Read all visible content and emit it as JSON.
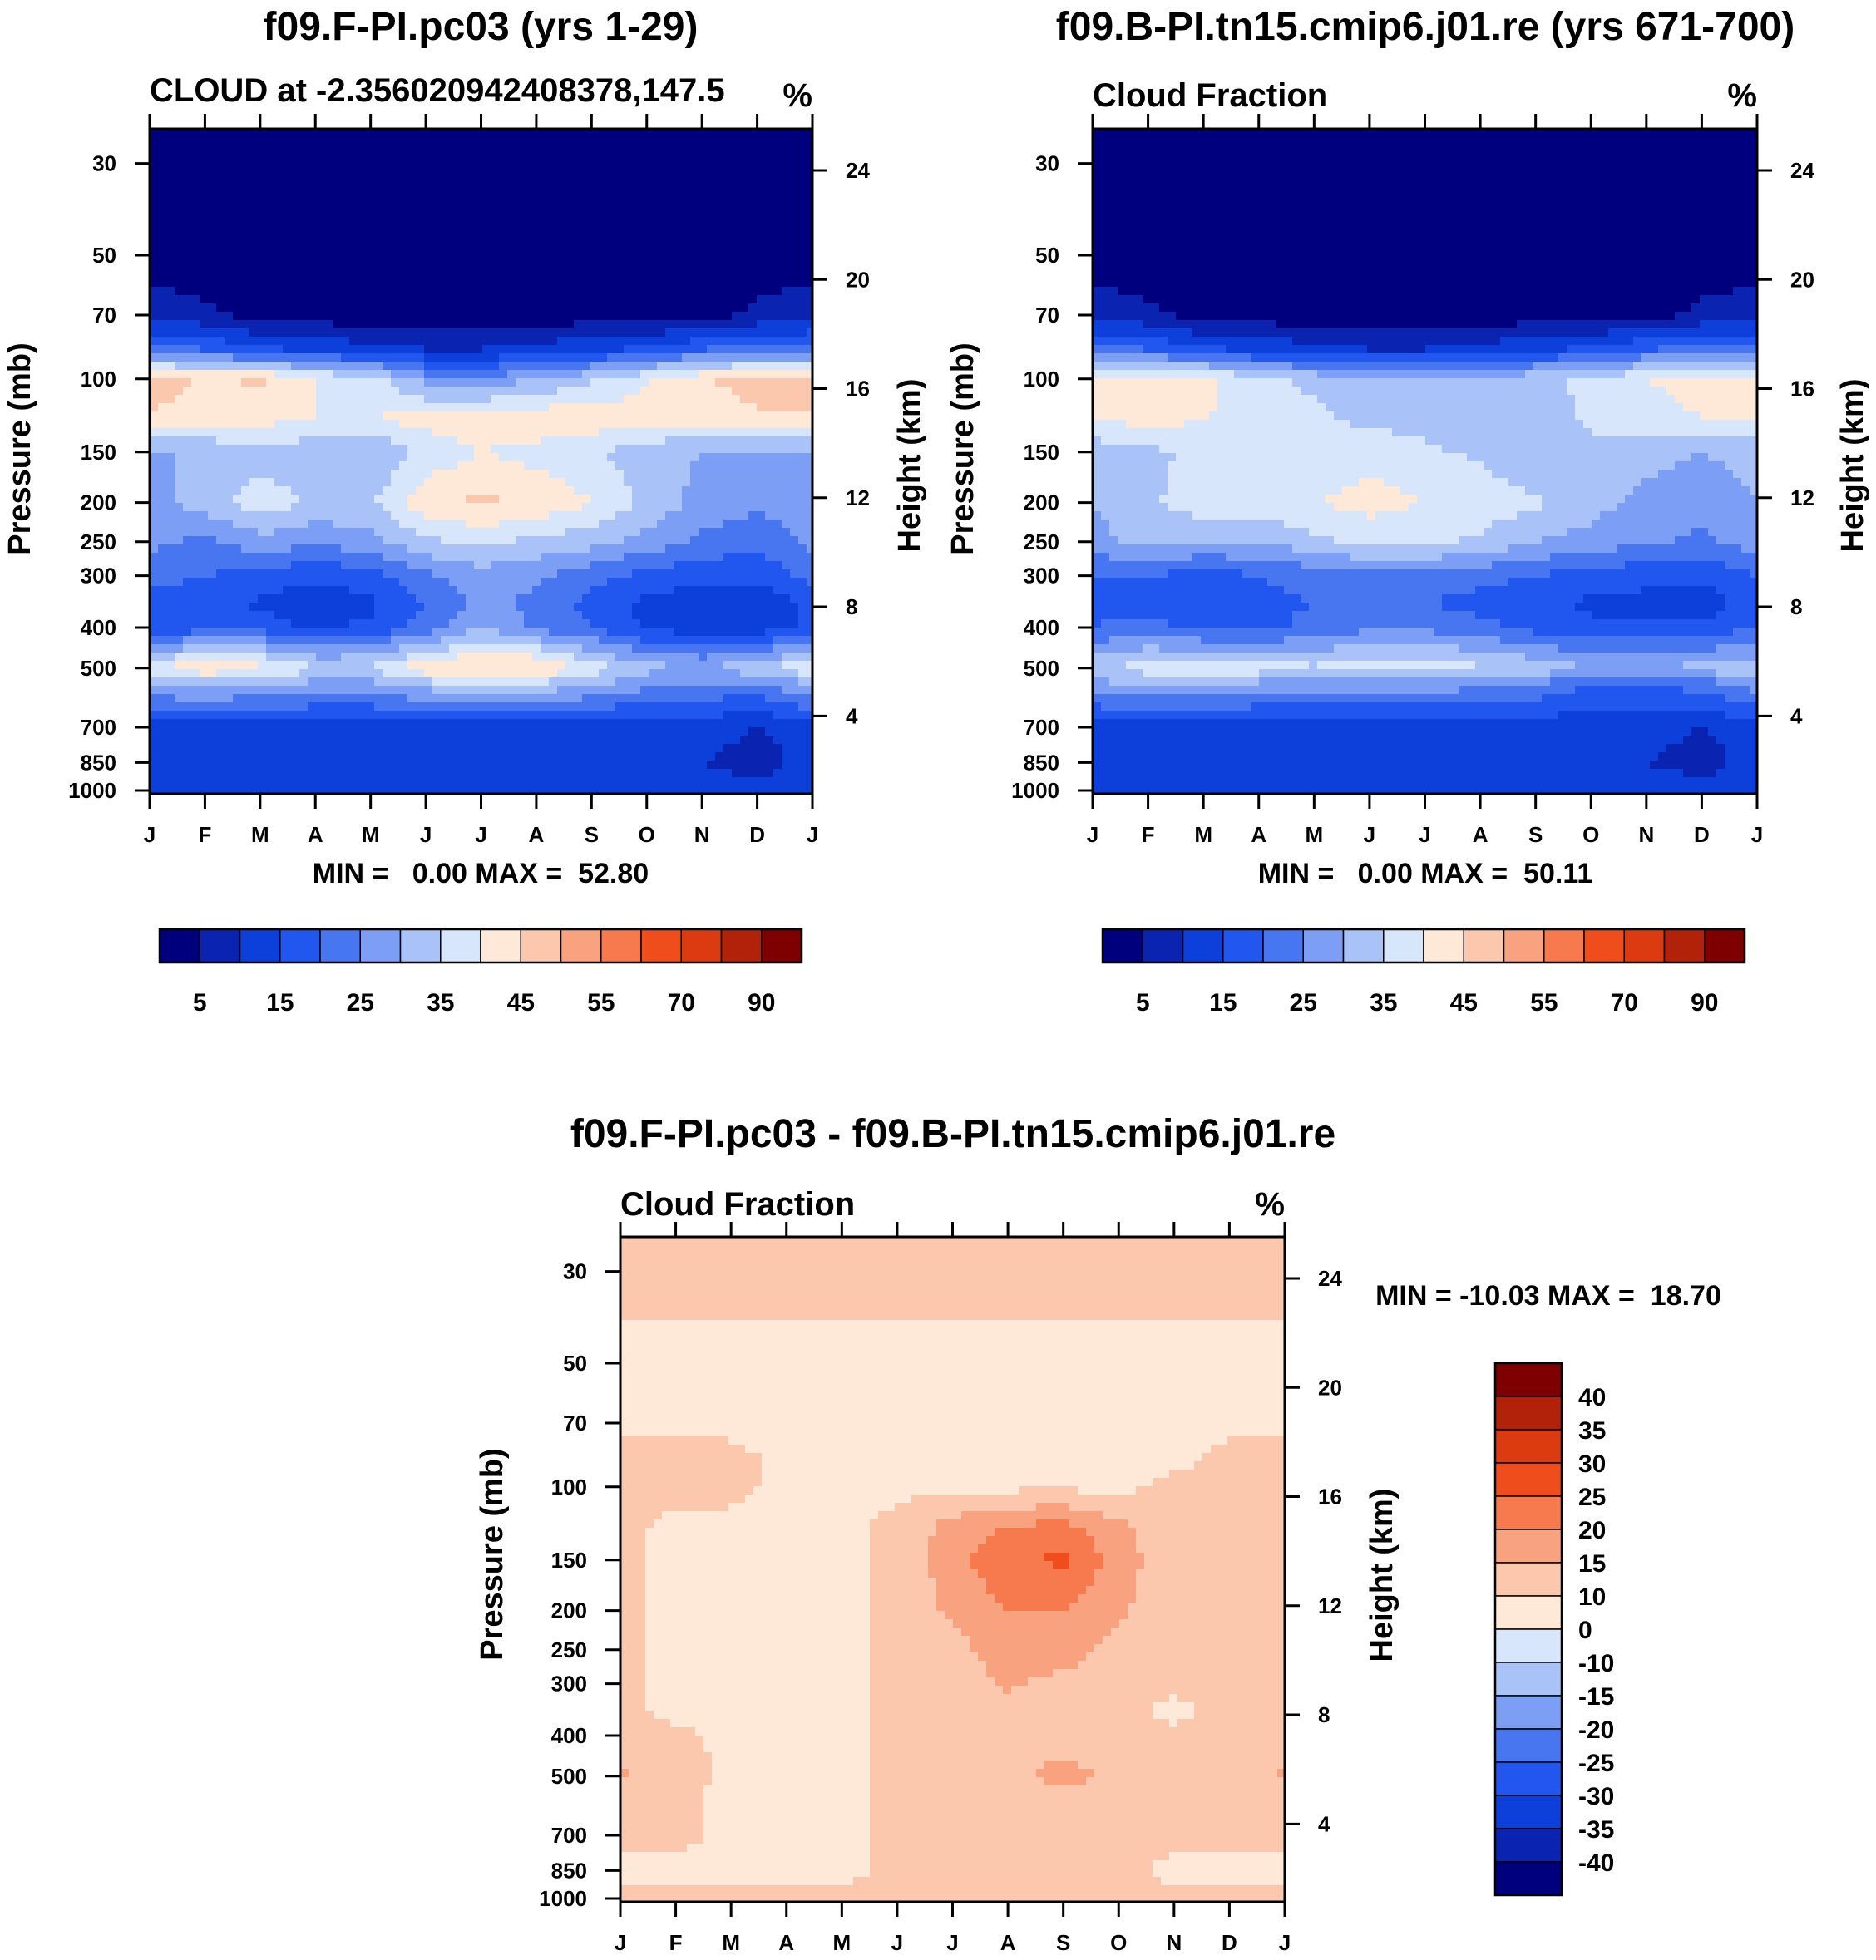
{
  "chart_data": [
    {
      "type": "contour",
      "id": "panel1",
      "title": "f09.F-PI.pc03 (yrs 1-29)",
      "left_label": "CLOUD at -2.356020942408378,147.5",
      "right_label": "%",
      "ylabel": "Pressure (mb)",
      "ylabel_right": "Height (km)",
      "x_ticks": [
        "J",
        "F",
        "M",
        "A",
        "M",
        "J",
        "J",
        "A",
        "S",
        "O",
        "N",
        "D",
        "J"
      ],
      "y_ticks": [
        30,
        50,
        70,
        100,
        150,
        200,
        250,
        300,
        400,
        500,
        700,
        850,
        1000
      ],
      "height_ticks": [
        24,
        20,
        16,
        12,
        8,
        4
      ],
      "minmax": "MIN =   0.00 MAX =  52.80",
      "min": 0.0,
      "max": 52.8,
      "colorbar_labels": [
        "5",
        "15",
        "25",
        "35",
        "45",
        "55",
        "70",
        "90"
      ],
      "levels": [
        0,
        5,
        10,
        15,
        20,
        25,
        30,
        35,
        40,
        45,
        50,
        55,
        60,
        70,
        80,
        90,
        100
      ],
      "months": [
        1,
        2,
        3,
        4,
        5,
        6,
        7,
        8,
        9,
        10,
        11,
        12,
        13
      ],
      "pressure_levels": [
        30,
        50,
        70,
        85,
        100,
        125,
        150,
        200,
        250,
        300,
        350,
        400,
        500,
        550,
        700,
        850,
        1000
      ],
      "values": [
        [
          2,
          2,
          2,
          2,
          2,
          2,
          2,
          2,
          2,
          2,
          2,
          2,
          2
        ],
        [
          2,
          2,
          2,
          2,
          2,
          2,
          2,
          2,
          2,
          2,
          2,
          2,
          2
        ],
        [
          8,
          6,
          3,
          2,
          2,
          2,
          2,
          2,
          2,
          2,
          3,
          6,
          8
        ],
        [
          22,
          20,
          16,
          14,
          12,
          10,
          10,
          12,
          14,
          16,
          20,
          22,
          22
        ],
        [
          48,
          44,
          46,
          40,
          38,
          28,
          26,
          30,
          34,
          40,
          44,
          48,
          48
        ],
        [
          44,
          44,
          42,
          40,
          40,
          42,
          43,
          44,
          43,
          42,
          42,
          44,
          44
        ],
        [
          30,
          30,
          32,
          32,
          30,
          36,
          40,
          38,
          36,
          32,
          30,
          30,
          30
        ],
        [
          28,
          32,
          38,
          34,
          34,
          44,
          46,
          44,
          40,
          34,
          28,
          26,
          28
        ],
        [
          26,
          24,
          28,
          26,
          28,
          34,
          36,
          34,
          32,
          28,
          24,
          22,
          26
        ],
        [
          22,
          20,
          18,
          16,
          18,
          24,
          28,
          26,
          22,
          18,
          16,
          16,
          22
        ],
        [
          16,
          18,
          14,
          12,
          14,
          20,
          26,
          24,
          18,
          14,
          12,
          12,
          16
        ],
        [
          16,
          18,
          18,
          14,
          16,
          22,
          30,
          24,
          20,
          14,
          12,
          12,
          16
        ],
        [
          40,
          44,
          42,
          36,
          36,
          44,
          46,
          46,
          38,
          32,
          30,
          34,
          40
        ],
        [
          30,
          32,
          30,
          28,
          28,
          32,
          36,
          34,
          30,
          26,
          24,
          24,
          30
        ],
        [
          12,
          12,
          12,
          12,
          12,
          12,
          12,
          12,
          12,
          12,
          12,
          10,
          12
        ],
        [
          12,
          10,
          10,
          10,
          11,
          12,
          12,
          12,
          12,
          12,
          10,
          8,
          12
        ],
        [
          10,
          10,
          10,
          12,
          12,
          14,
          15,
          15,
          14,
          12,
          12,
          12,
          10
        ]
      ]
    },
    {
      "type": "contour",
      "id": "panel2",
      "title": "f09.B-PI.tn15.cmip6.j01.re (yrs 671-700)",
      "left_label": "Cloud Fraction",
      "right_label": "%",
      "ylabel": "Pressure (mb)",
      "ylabel_right": "Height (km)",
      "x_ticks": [
        "J",
        "F",
        "M",
        "A",
        "M",
        "J",
        "J",
        "A",
        "S",
        "O",
        "N",
        "D",
        "J"
      ],
      "y_ticks": [
        30,
        50,
        70,
        100,
        150,
        200,
        250,
        300,
        400,
        500,
        700,
        850,
        1000
      ],
      "height_ticks": [
        24,
        20,
        16,
        12,
        8,
        4
      ],
      "minmax": "MIN =   0.00 MAX =  50.11",
      "min": 0.0,
      "max": 50.11,
      "colorbar_labels": [
        "5",
        "15",
        "25",
        "35",
        "45",
        "55",
        "70",
        "90"
      ],
      "levels": [
        0,
        5,
        10,
        15,
        20,
        25,
        30,
        35,
        40,
        45,
        50,
        55,
        60,
        70,
        80,
        90,
        100
      ],
      "months": [
        1,
        2,
        3,
        4,
        5,
        6,
        7,
        8,
        9,
        10,
        11,
        12,
        13
      ],
      "pressure_levels": [
        30,
        50,
        70,
        85,
        100,
        125,
        150,
        200,
        250,
        300,
        350,
        400,
        500,
        550,
        700,
        850,
        1000
      ],
      "values": [
        [
          2,
          2,
          2,
          2,
          2,
          2,
          2,
          2,
          2,
          2,
          2,
          2,
          2
        ],
        [
          2,
          2,
          2,
          2,
          2,
          2,
          2,
          2,
          2,
          2,
          2,
          2,
          2
        ],
        [
          8,
          6,
          3,
          2,
          2,
          2,
          2,
          2,
          2,
          2,
          3,
          6,
          8
        ],
        [
          22,
          20,
          16,
          14,
          12,
          10,
          10,
          12,
          14,
          16,
          20,
          22,
          22
        ],
        [
          42,
          44,
          42,
          36,
          34,
          30,
          30,
          30,
          34,
          36,
          40,
          42,
          42
        ],
        [
          40,
          42,
          40,
          38,
          36,
          34,
          33,
          32,
          32,
          36,
          38,
          40,
          40
        ],
        [
          32,
          34,
          36,
          36,
          36,
          38,
          36,
          34,
          30,
          34,
          32,
          30,
          32
        ],
        [
          30,
          34,
          38,
          38,
          40,
          42,
          40,
          38,
          36,
          32,
          28,
          26,
          30
        ],
        [
          28,
          32,
          30,
          30,
          34,
          36,
          36,
          34,
          30,
          28,
          26,
          24,
          28
        ],
        [
          20,
          20,
          18,
          20,
          22,
          24,
          24,
          22,
          20,
          18,
          16,
          16,
          20
        ],
        [
          18,
          18,
          16,
          18,
          20,
          20,
          20,
          18,
          16,
          14,
          14,
          12,
          18
        ],
        [
          20,
          22,
          18,
          18,
          22,
          24,
          24,
          22,
          18,
          16,
          16,
          16,
          20
        ],
        [
          34,
          38,
          40,
          38,
          36,
          38,
          38,
          36,
          34,
          30,
          30,
          32,
          34
        ],
        [
          28,
          30,
          30,
          28,
          28,
          28,
          28,
          26,
          24,
          20,
          20,
          22,
          28
        ],
        [
          12,
          12,
          12,
          12,
          12,
          12,
          12,
          12,
          12,
          12,
          12,
          10,
          12
        ],
        [
          12,
          12,
          12,
          12,
          12,
          12,
          12,
          12,
          12,
          12,
          10,
          8,
          12
        ],
        [
          10,
          12,
          12,
          12,
          12,
          12,
          12,
          12,
          12,
          12,
          12,
          12,
          10
        ]
      ]
    },
    {
      "type": "contour",
      "id": "panel3",
      "title": "f09.F-PI.pc03 - f09.B-PI.tn15.cmip6.j01.re",
      "left_label": "Cloud Fraction",
      "right_label": "%",
      "ylabel": "Pressure (mb)",
      "ylabel_right": "Height (km)",
      "x_ticks": [
        "J",
        "F",
        "M",
        "A",
        "M",
        "J",
        "J",
        "A",
        "S",
        "O",
        "N",
        "D",
        "J"
      ],
      "y_ticks": [
        30,
        50,
        70,
        100,
        150,
        200,
        250,
        300,
        400,
        500,
        700,
        850,
        1000
      ],
      "height_ticks": [
        24,
        20,
        16,
        12,
        8,
        4
      ],
      "minmax": "MIN = -10.03 MAX =  18.70",
      "min": -10.03,
      "max": 18.7,
      "colorbar_labels": [
        "40",
        "35",
        "30",
        "25",
        "20",
        "15",
        "10",
        "0",
        "-10",
        "-15",
        "-20",
        "-25",
        "-30",
        "-35",
        "-40"
      ],
      "levels": [
        -45,
        -40,
        -35,
        -30,
        -25,
        -20,
        -15,
        -10,
        -5,
        0,
        5,
        10,
        15,
        20,
        25,
        30,
        35,
        40,
        45
      ],
      "months": [
        1,
        2,
        3,
        4,
        5,
        6,
        7,
        8,
        9,
        10,
        11,
        12,
        13
      ],
      "pressure_levels": [
        30,
        50,
        70,
        85,
        100,
        125,
        150,
        200,
        250,
        300,
        350,
        400,
        500,
        550,
        700,
        850,
        1000
      ],
      "values": [
        [
          1,
          1,
          1,
          1,
          1,
          1,
          1,
          1,
          1,
          1,
          1,
          1,
          1
        ],
        [
          -1,
          -1,
          -1,
          -1,
          -1,
          -1,
          -1,
          -1,
          -1,
          -1,
          -1,
          -1,
          -1
        ],
        [
          -1,
          -1,
          -1,
          -1,
          -1,
          -1,
          -1,
          -1,
          -1,
          -1,
          -1,
          -1,
          -1
        ],
        [
          1,
          1,
          1,
          -1,
          -1,
          -1,
          -1,
          -1,
          -1,
          -1,
          -1,
          1,
          1
        ],
        [
          1,
          1,
          1,
          -1,
          -1,
          -1,
          -1,
          -1,
          -1,
          -1,
          1,
          1,
          1
        ],
        [
          1,
          -1,
          -1,
          -1,
          -1,
          1,
          7,
          10,
          12,
          6,
          1,
          1,
          1
        ],
        [
          1,
          -1,
          -1,
          -1,
          -1,
          1,
          8,
          14,
          16,
          8,
          1,
          1,
          1
        ],
        [
          1,
          -1,
          -1,
          -1,
          -1,
          1,
          6,
          10,
          10,
          6,
          1,
          1,
          1
        ],
        [
          1,
          -1,
          -1,
          -1,
          -1,
          1,
          3,
          8,
          8,
          3,
          1,
          1,
          1
        ],
        [
          1,
          -1,
          -1,
          -1,
          -1,
          1,
          1,
          6,
          3,
          1,
          1,
          1,
          1
        ],
        [
          1,
          -1,
          -1,
          -1,
          -1,
          1,
          1,
          3,
          1,
          1,
          -1,
          1,
          1
        ],
        [
          1,
          1,
          -1,
          -1,
          -1,
          1,
          1,
          1,
          1,
          1,
          1,
          1,
          1
        ],
        [
          6,
          2,
          -1,
          -1,
          -1,
          1,
          1,
          3,
          8,
          3,
          1,
          1,
          6
        ],
        [
          2,
          1,
          -1,
          -1,
          -1,
          1,
          1,
          1,
          3,
          1,
          1,
          2,
          2
        ],
        [
          1,
          1,
          -1,
          -1,
          -1,
          1,
          1,
          1,
          1,
          1,
          1,
          1,
          1
        ],
        [
          -1,
          -1,
          -1,
          -1,
          -1,
          1,
          1,
          1,
          1,
          1,
          -1,
          -1,
          -1
        ],
        [
          1,
          1,
          1,
          1,
          1,
          1,
          1,
          1,
          1,
          1,
          1,
          1,
          1
        ]
      ]
    }
  ],
  "colors": {
    "cloud_palette": [
      "#00007f",
      "#0a23b0",
      "#0d3fdb",
      "#2157ee",
      "#4876f0",
      "#7c9ff5",
      "#a9c2f7",
      "#d7e6fb",
      "#fee9d9",
      "#fbc8ae",
      "#f9a27f",
      "#f7794e",
      "#f04d1c",
      "#dc3a10",
      "#b2210a",
      "#7f0000"
    ],
    "diff_palette": [
      "#00007f",
      "#0a23b0",
      "#0d3fdb",
      "#2157ee",
      "#4876f0",
      "#7c9ff5",
      "#a9c2f7",
      "#d7e6fb",
      "#fee9d9",
      "#fbc8ae",
      "#f9a27f",
      "#f7794e",
      "#f04d1c",
      "#dc3a10",
      "#b2210a",
      "#7f0000"
    ]
  }
}
